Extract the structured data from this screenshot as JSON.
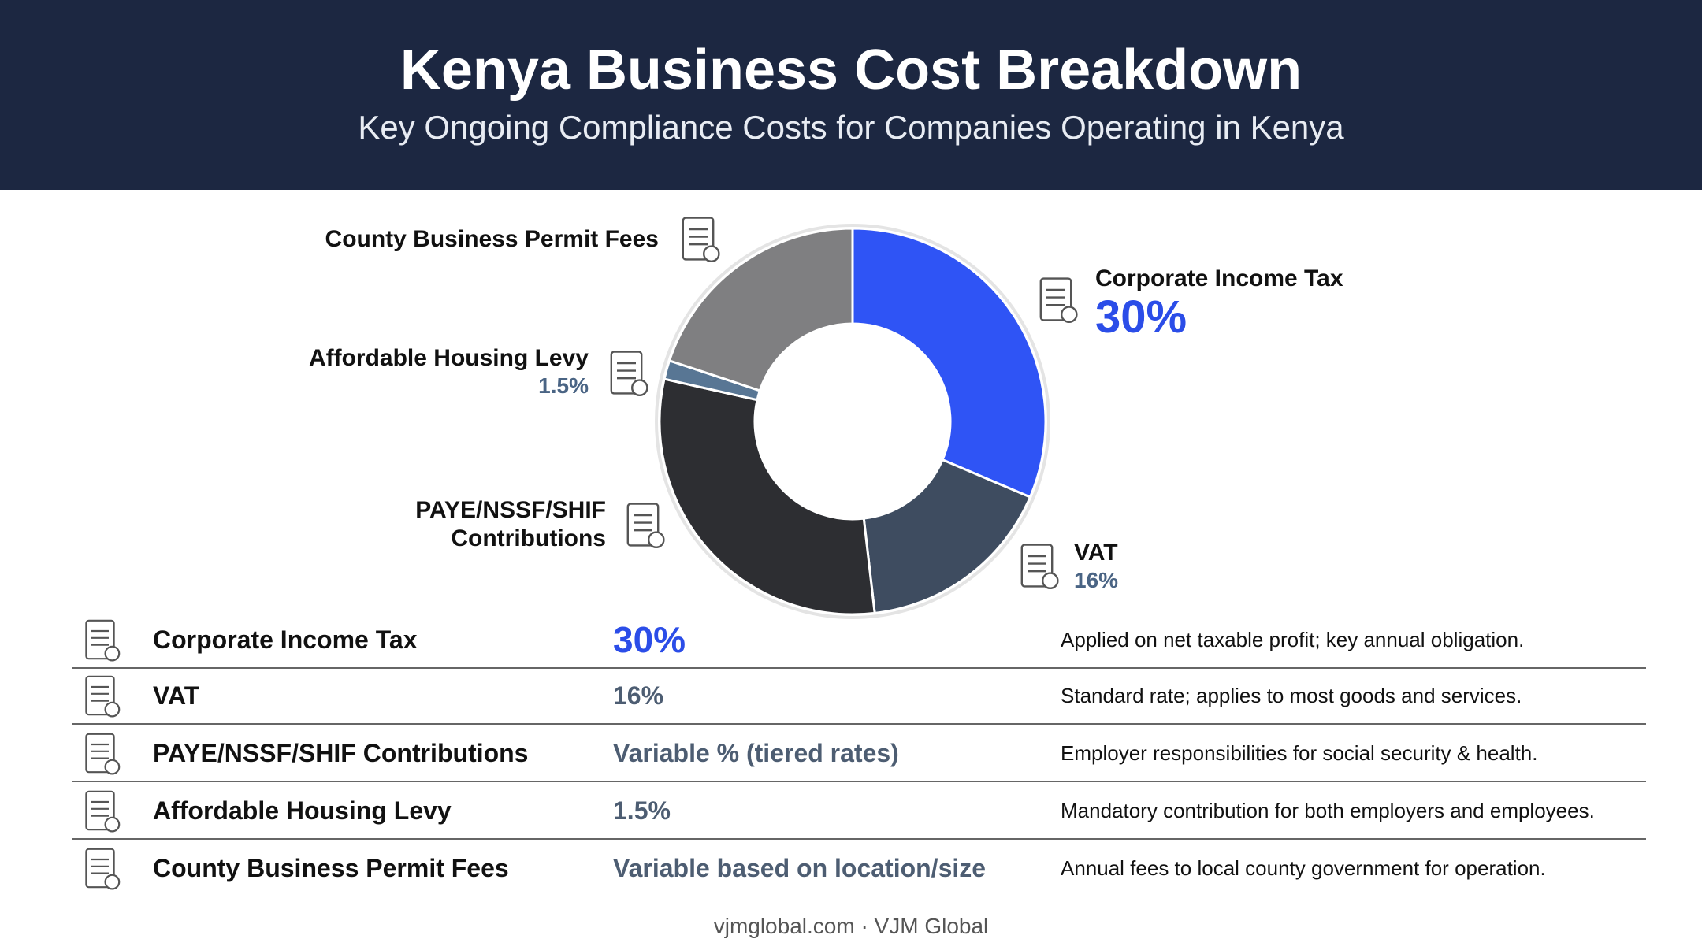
{
  "chart_data": {
    "type": "pie",
    "title": "Kenya Business Cost Breakdown",
    "subtitle": "Key Ongoing Compliance Costs for Companies Operating in Kenya",
    "categories": [
      "Corporate Income Tax",
      "VAT",
      "PAYE/NSSF/SHIF Contributions",
      "Affordable Housing Levy",
      "County Business Permit Fees"
    ],
    "values": [
      30,
      16,
      29,
      1.5,
      19
    ],
    "value_labels": [
      "30%",
      "16%",
      null,
      "1.5%",
      null
    ],
    "colors": [
      "#2f54f5",
      "#3e4c60",
      "#2d2e32",
      "#587694",
      "#7f7f81"
    ],
    "donut": true
  },
  "table": {
    "rows": [
      [
        "Corporate Income Tax",
        "30%",
        "Applied on net taxable profit; key annual obligation."
      ],
      [
        "VAT",
        "16%",
        "Standard rate; applies to most goods and services."
      ],
      [
        "PAYE/NSSF/SHIF Contributions",
        "Variable % (tiered rates)",
        "Employer responsibilities for social security & health."
      ],
      [
        "Affordable Housing Levy",
        "1.5%",
        "Mandatory contribution for both employers and employees."
      ],
      [
        "County Business Permit Fees",
        "Variable based on location/size",
        "Annual fees to local county government for operation."
      ]
    ]
  },
  "footer": "vjmglobal.com · VJM Global"
}
